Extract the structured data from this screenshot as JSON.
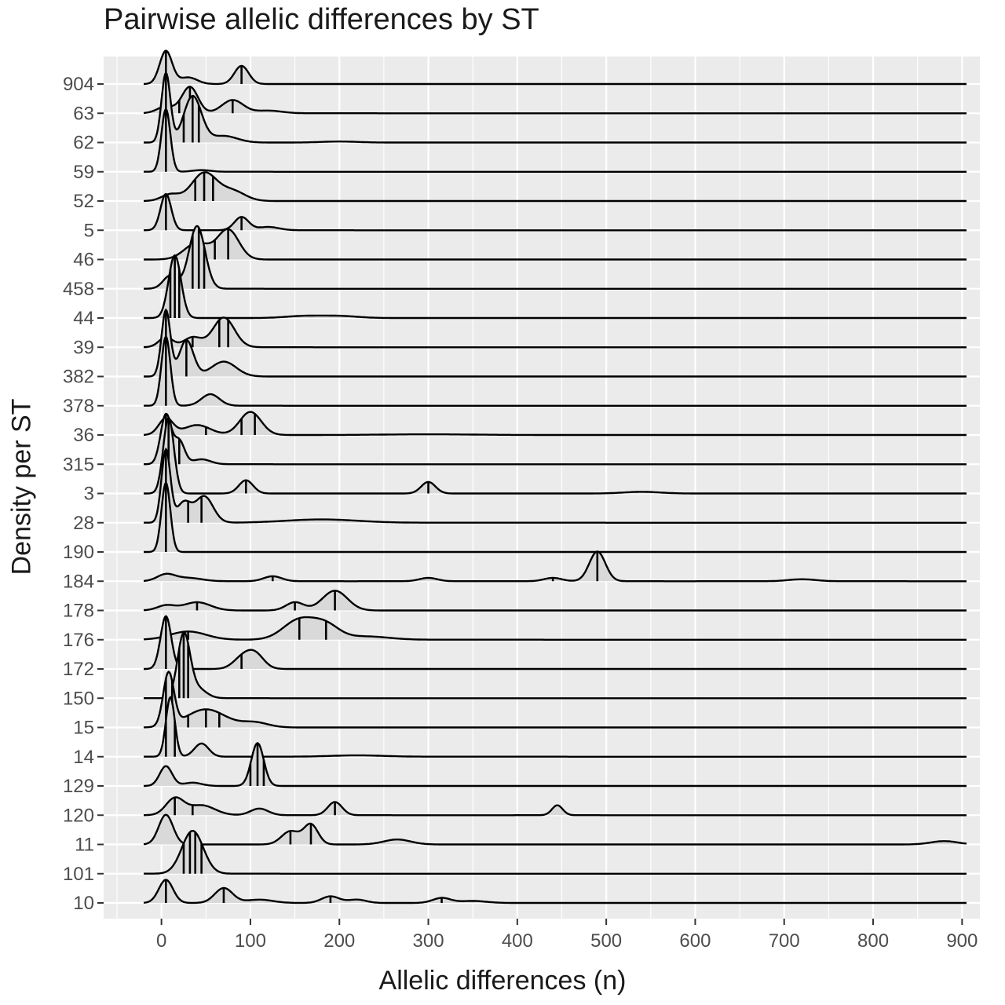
{
  "chart_data": {
    "type": "ridgeline",
    "title": "Pairwise allelic differences by ST",
    "xlabel": "Allelic differences (n)",
    "ylabel": "Density per ST",
    "xlim": [
      -65,
      920
    ],
    "x_ticks": [
      0,
      100,
      200,
      300,
      400,
      500,
      600,
      700,
      800,
      900
    ],
    "grid": true,
    "fill_color": "#d9d9d9",
    "panel_color": "#ebebeb",
    "line_color": "#000000",
    "series": [
      {
        "name": "904",
        "peaks": [
          [
            5,
            1.0,
            7
          ],
          [
            30,
            0.2,
            10
          ],
          [
            90,
            0.55,
            8
          ]
        ],
        "ticks": [
          5,
          90
        ],
        "x_range": [
          -20,
          905
        ]
      },
      {
        "name": "63",
        "peaks": [
          [
            5,
            0.2,
            10
          ],
          [
            32,
            0.8,
            9
          ],
          [
            80,
            0.4,
            12
          ],
          [
            120,
            0.08,
            15
          ]
        ],
        "ticks": [
          20,
          32,
          80
        ],
        "x_range": [
          -20,
          905
        ]
      },
      {
        "name": "62",
        "peaks": [
          [
            5,
            2.1,
            5
          ],
          [
            35,
            1.4,
            10
          ],
          [
            70,
            0.2,
            15
          ],
          [
            200,
            0.03,
            20
          ]
        ],
        "ticks": [
          5,
          25,
          35,
          42
        ],
        "x_range": [
          -20,
          905
        ]
      },
      {
        "name": "59",
        "peaks": [
          [
            5,
            1.9,
            5
          ],
          [
            45,
            0.05,
            10
          ]
        ],
        "ticks": [
          5
        ],
        "x_range": [
          -20,
          905
        ]
      },
      {
        "name": "52",
        "peaks": [
          [
            10,
            0.2,
            10
          ],
          [
            48,
            0.85,
            14
          ],
          [
            80,
            0.3,
            14
          ]
        ],
        "ticks": [
          38,
          48,
          58
        ],
        "x_range": [
          -20,
          905
        ]
      },
      {
        "name": "5",
        "peaks": [
          [
            5,
            1.1,
            6
          ],
          [
            90,
            0.4,
            8
          ],
          [
            120,
            0.1,
            12
          ]
        ],
        "ticks": [
          5,
          90
        ],
        "x_range": [
          -20,
          905
        ]
      },
      {
        "name": "46",
        "peaks": [
          [
            40,
            0.5,
            14
          ],
          [
            75,
            0.9,
            12
          ]
        ],
        "ticks": [
          40,
          60,
          75
        ],
        "x_range": [
          -20,
          905
        ]
      },
      {
        "name": "458",
        "peaks": [
          [
            10,
            0.4,
            8
          ],
          [
            40,
            1.9,
            9
          ]
        ],
        "ticks": [
          35,
          42,
          48
        ],
        "x_range": [
          -20,
          905
        ]
      },
      {
        "name": "44",
        "peaks": [
          [
            15,
            1.9,
            7
          ],
          [
            160,
            0.06,
            20
          ],
          [
            200,
            0.06,
            20
          ]
        ],
        "ticks": [
          10,
          15,
          20
        ],
        "x_range": [
          -20,
          905
        ]
      },
      {
        "name": "39",
        "peaks": [
          [
            5,
            0.3,
            8
          ],
          [
            35,
            0.3,
            10
          ],
          [
            70,
            0.9,
            12
          ]
        ],
        "ticks": [
          35,
          65,
          75
        ],
        "x_range": [
          -20,
          905
        ]
      },
      {
        "name": "382",
        "peaks": [
          [
            5,
            2.0,
            5
          ],
          [
            28,
            1.1,
            8
          ],
          [
            70,
            0.45,
            14
          ]
        ],
        "ticks": [
          5,
          28
        ],
        "x_range": [
          -20,
          905
        ]
      },
      {
        "name": "378",
        "peaks": [
          [
            5,
            2.1,
            5
          ],
          [
            55,
            0.35,
            10
          ]
        ],
        "ticks": [
          5
        ],
        "x_range": [
          -20,
          905
        ]
      },
      {
        "name": "36",
        "peaks": [
          [
            5,
            0.5,
            8
          ],
          [
            40,
            0.3,
            15
          ],
          [
            100,
            0.7,
            12
          ],
          [
            300,
            0.02,
            50
          ]
        ],
        "ticks": [
          5,
          50,
          90,
          105
        ],
        "x_range": [
          -20,
          905
        ]
      },
      {
        "name": "315",
        "peaks": [
          [
            5,
            1.5,
            6
          ],
          [
            20,
            0.7,
            6
          ],
          [
            45,
            0.15,
            10
          ]
        ],
        "ticks": [
          5,
          20
        ],
        "x_range": [
          -20,
          905
        ]
      },
      {
        "name": "3",
        "peaks": [
          [
            8,
            2.3,
            6
          ],
          [
            95,
            0.4,
            8
          ],
          [
            300,
            0.35,
            8
          ],
          [
            540,
            0.05,
            20
          ]
        ],
        "ticks": [
          8,
          95,
          300
        ],
        "x_range": [
          -20,
          905
        ]
      },
      {
        "name": "28",
        "peaks": [
          [
            5,
            2.2,
            5
          ],
          [
            25,
            0.6,
            8
          ],
          [
            48,
            0.8,
            10
          ],
          [
            180,
            0.1,
            40
          ]
        ],
        "ticks": [
          5,
          30,
          45
        ],
        "x_range": [
          -20,
          905
        ]
      },
      {
        "name": "190",
        "peaks": [
          [
            5,
            2.1,
            5
          ]
        ],
        "ticks": [
          5
        ],
        "x_range": [
          -20,
          905
        ]
      },
      {
        "name": "184",
        "peaks": [
          [
            5,
            0.2,
            10
          ],
          [
            30,
            0.1,
            15
          ],
          [
            125,
            0.15,
            10
          ],
          [
            300,
            0.1,
            10
          ],
          [
            440,
            0.1,
            10
          ],
          [
            490,
            0.9,
            9
          ],
          [
            720,
            0.06,
            15
          ]
        ],
        "ticks": [
          125,
          440,
          490
        ],
        "x_range": [
          -20,
          905
        ]
      },
      {
        "name": "178",
        "peaks": [
          [
            5,
            0.15,
            10
          ],
          [
            40,
            0.25,
            15
          ],
          [
            150,
            0.25,
            10
          ],
          [
            195,
            0.6,
            14
          ]
        ],
        "ticks": [
          40,
          150,
          195
        ],
        "x_range": [
          -20,
          905
        ]
      },
      {
        "name": "176",
        "peaks": [
          [
            30,
            0.25,
            20
          ],
          [
            155,
            0.6,
            18
          ],
          [
            185,
            0.4,
            15
          ],
          [
            230,
            0.1,
            25
          ]
        ],
        "ticks": [
          30,
          155,
          185
        ],
        "x_range": [
          -20,
          905
        ]
      },
      {
        "name": "172",
        "peaks": [
          [
            5,
            1.6,
            6
          ],
          [
            90,
            0.3,
            10
          ],
          [
            105,
            0.45,
            10
          ]
        ],
        "ticks": [
          5,
          90
        ],
        "x_range": [
          -20,
          905
        ]
      },
      {
        "name": "150",
        "peaks": [
          [
            25,
            1.9,
            7
          ],
          [
            40,
            0.3,
            10
          ]
        ],
        "ticks": [
          20,
          25,
          30
        ],
        "x_range": [
          -20,
          905
        ]
      },
      {
        "name": "15",
        "peaks": [
          [
            8,
            1.6,
            6
          ],
          [
            50,
            0.55,
            22
          ],
          [
            105,
            0.15,
            15
          ]
        ],
        "ticks": [
          5,
          12,
          30,
          50,
          65
        ],
        "x_range": [
          -20,
          905
        ]
      },
      {
        "name": "14",
        "peaks": [
          [
            10,
            1.8,
            5
          ],
          [
            45,
            0.4,
            8
          ],
          [
            220,
            0.04,
            30
          ]
        ],
        "ticks": [
          5,
          15
        ],
        "x_range": [
          -20,
          905
        ]
      },
      {
        "name": "129",
        "peaks": [
          [
            5,
            0.6,
            7
          ],
          [
            35,
            0.1,
            10
          ],
          [
            108,
            1.3,
            7
          ]
        ],
        "ticks": [
          100,
          108,
          115
        ],
        "x_range": [
          -20,
          905
        ]
      },
      {
        "name": "120",
        "peaks": [
          [
            15,
            0.5,
            10
          ],
          [
            45,
            0.3,
            15
          ],
          [
            110,
            0.2,
            10
          ],
          [
            195,
            0.4,
            8
          ],
          [
            445,
            0.3,
            6
          ]
        ],
        "ticks": [
          15,
          35,
          195
        ],
        "x_range": [
          -20,
          905
        ]
      },
      {
        "name": "11",
        "peaks": [
          [
            5,
            0.9,
            8
          ],
          [
            145,
            0.4,
            10
          ],
          [
            168,
            0.6,
            8
          ],
          [
            265,
            0.15,
            15
          ],
          [
            880,
            0.1,
            15
          ]
        ],
        "ticks": [
          145,
          168
        ],
        "x_range": [
          -20,
          905
        ]
      },
      {
        "name": "101",
        "peaks": [
          [
            35,
            1.3,
            12
          ]
        ],
        "ticks": [
          25,
          32,
          38,
          45
        ],
        "x_range": [
          -20,
          905
        ]
      },
      {
        "name": "10",
        "peaks": [
          [
            5,
            0.7,
            8
          ],
          [
            70,
            0.45,
            10
          ],
          [
            110,
            0.1,
            15
          ],
          [
            190,
            0.2,
            10
          ],
          [
            220,
            0.1,
            10
          ],
          [
            315,
            0.15,
            10
          ],
          [
            350,
            0.06,
            15
          ]
        ],
        "ticks": [
          5,
          70,
          190,
          315
        ],
        "x_range": [
          -20,
          905
        ]
      }
    ]
  }
}
